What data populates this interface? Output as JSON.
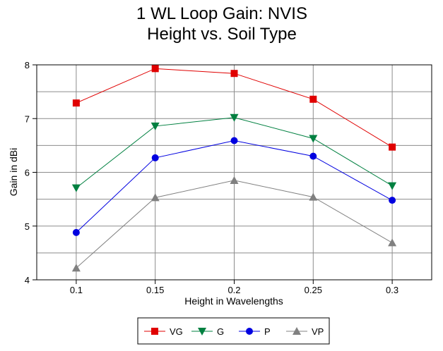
{
  "chart_data": {
    "type": "line",
    "title": [
      "1 WL Loop Gain: NVIS",
      "Height vs. Soil Type"
    ],
    "xlabel": "Height in Wavelengths",
    "ylabel": "Gain in dBi",
    "x": [
      0.1,
      0.15,
      0.2,
      0.25,
      0.3
    ],
    "x_tick_labels": [
      "0.1",
      "0.15",
      "0.2",
      "0.25",
      "0.3"
    ],
    "xlim": [
      0.075,
      0.325
    ],
    "ylim": [
      4,
      8
    ],
    "y_ticks": [
      4,
      5,
      6,
      7,
      8
    ],
    "y_tick_labels": [
      "4",
      "5",
      "6",
      "7",
      "8"
    ],
    "grid": true,
    "legend_position": "bottom",
    "series": [
      {
        "name": "VG",
        "color": "#e00000",
        "marker": "square",
        "values": [
          7.29,
          7.93,
          7.84,
          7.36,
          6.47
        ]
      },
      {
        "name": "G",
        "color": "#008040",
        "marker": "triangle-down",
        "values": [
          5.71,
          6.86,
          7.02,
          6.63,
          5.75
        ]
      },
      {
        "name": "P",
        "color": "#0000e0",
        "marker": "circle",
        "values": [
          4.88,
          6.27,
          6.59,
          6.3,
          5.48
        ]
      },
      {
        "name": "VP",
        "color": "#808080",
        "marker": "triangle-up",
        "values": [
          4.22,
          5.53,
          5.85,
          5.54,
          4.69
        ]
      }
    ]
  }
}
